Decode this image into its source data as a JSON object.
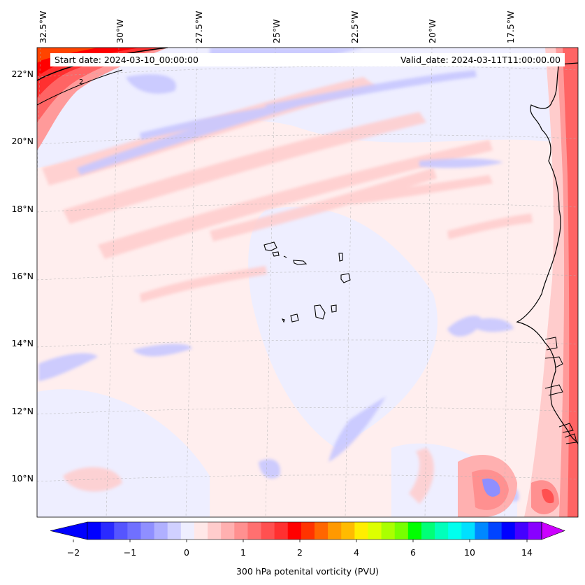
{
  "map": {
    "lon_labels": [
      "32.5°W",
      "30°W",
      "27.5°W",
      "25°W",
      "22.5°W",
      "20°W",
      "17.5°W"
    ],
    "lat_labels": [
      "22°N",
      "20°N",
      "18°N",
      "16°N",
      "14°N",
      "12°N",
      "10°N"
    ],
    "start_date": "Start date: 2024-03-10_00:00:00",
    "valid_date": "Valid_date: 2024-03-11T11:00:00.00",
    "contour_label": "2"
  },
  "colorbar": {
    "label": "300 hPa potenital vorticity (PVU)",
    "ticks": [
      "−2",
      "−1",
      "0",
      "1",
      "2",
      "4",
      "6",
      "10",
      "14"
    ],
    "colors": [
      "#0000ff",
      "#2a2aff",
      "#5555ff",
      "#7070ff",
      "#8f8fff",
      "#b0b0ff",
      "#d0d0ff",
      "#eeeeff",
      "#ffe8e8",
      "#ffcccc",
      "#ffb0b0",
      "#ff9090",
      "#ff7070",
      "#ff5050",
      "#ff3030",
      "#ff0000",
      "#ff3300",
      "#ff6600",
      "#ff9900",
      "#ffbb00",
      "#ffee00",
      "#ddff00",
      "#aaff00",
      "#77ff00",
      "#00ff00",
      "#00ff77",
      "#00ffbb",
      "#00ffee",
      "#00e0ff",
      "#0088ff",
      "#0044ff",
      "#0000ff",
      "#4400ff",
      "#8800ff"
    ],
    "under_color": "#0000ff",
    "over_color": "#cc00ff"
  }
}
